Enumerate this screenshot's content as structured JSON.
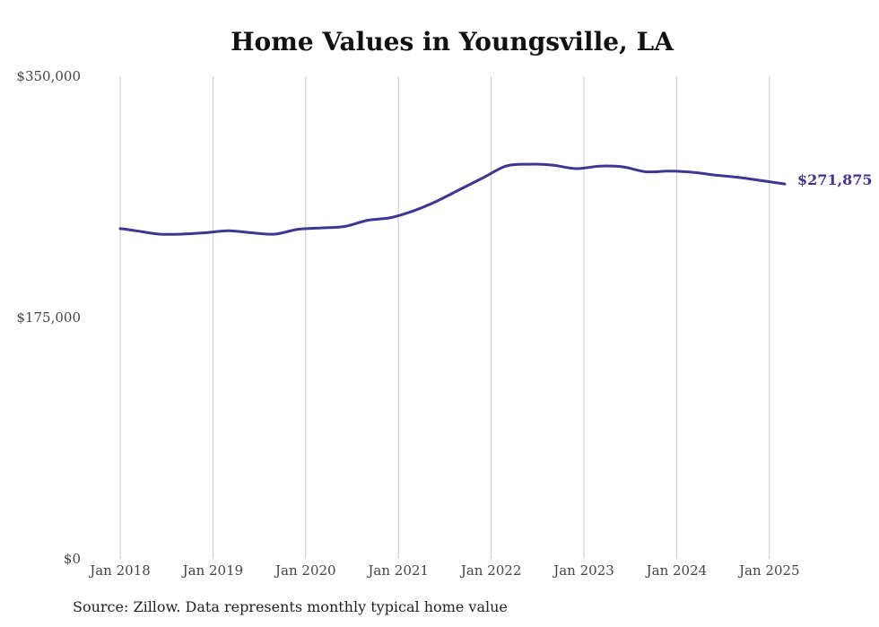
{
  "chart_data": {
    "type": "line",
    "title": "Home Values in Youngsville, LA",
    "source": "Source: Zillow. Data represents monthly typical home value",
    "ylim": [
      0,
      350000
    ],
    "y_ticks": [
      "$350,000",
      "$175,000",
      "$0"
    ],
    "y_tick_values": [
      350000,
      175000,
      0
    ],
    "x_ticks": [
      "Jan 2018",
      "Jan 2019",
      "Jan 2020",
      "Jan 2021",
      "Jan 2022",
      "Jan 2023",
      "Jan 2024",
      "Jan 2025"
    ],
    "x_tick_dates": [
      "2018-01",
      "2019-01",
      "2020-01",
      "2021-01",
      "2022-01",
      "2023-01",
      "2024-01",
      "2025-01"
    ],
    "grid": "vertical",
    "line_color": "#3f3592",
    "end_label": "$271,875",
    "series": [
      {
        "x": [
          "2018-01",
          "2018-03",
          "2018-06",
          "2018-09",
          "2018-12",
          "2019-03",
          "2019-06",
          "2019-09",
          "2019-12",
          "2020-03",
          "2020-06",
          "2020-09",
          "2020-12",
          "2021-03",
          "2021-06",
          "2021-09",
          "2021-12",
          "2022-03",
          "2022-06",
          "2022-09",
          "2022-12",
          "2023-03",
          "2023-06",
          "2023-09",
          "2023-12",
          "2024-03",
          "2024-06",
          "2024-09",
          "2024-12",
          "2025-03"
        ],
        "values": [
          239500,
          238000,
          235500,
          235500,
          236500,
          238000,
          236500,
          235500,
          239000,
          240000,
          241000,
          245500,
          247500,
          252500,
          259500,
          268000,
          276500,
          285000,
          286200,
          285500,
          283000,
          284800,
          284300,
          280700,
          281200,
          280400,
          278300,
          276700,
          274300,
          271875
        ]
      }
    ]
  }
}
